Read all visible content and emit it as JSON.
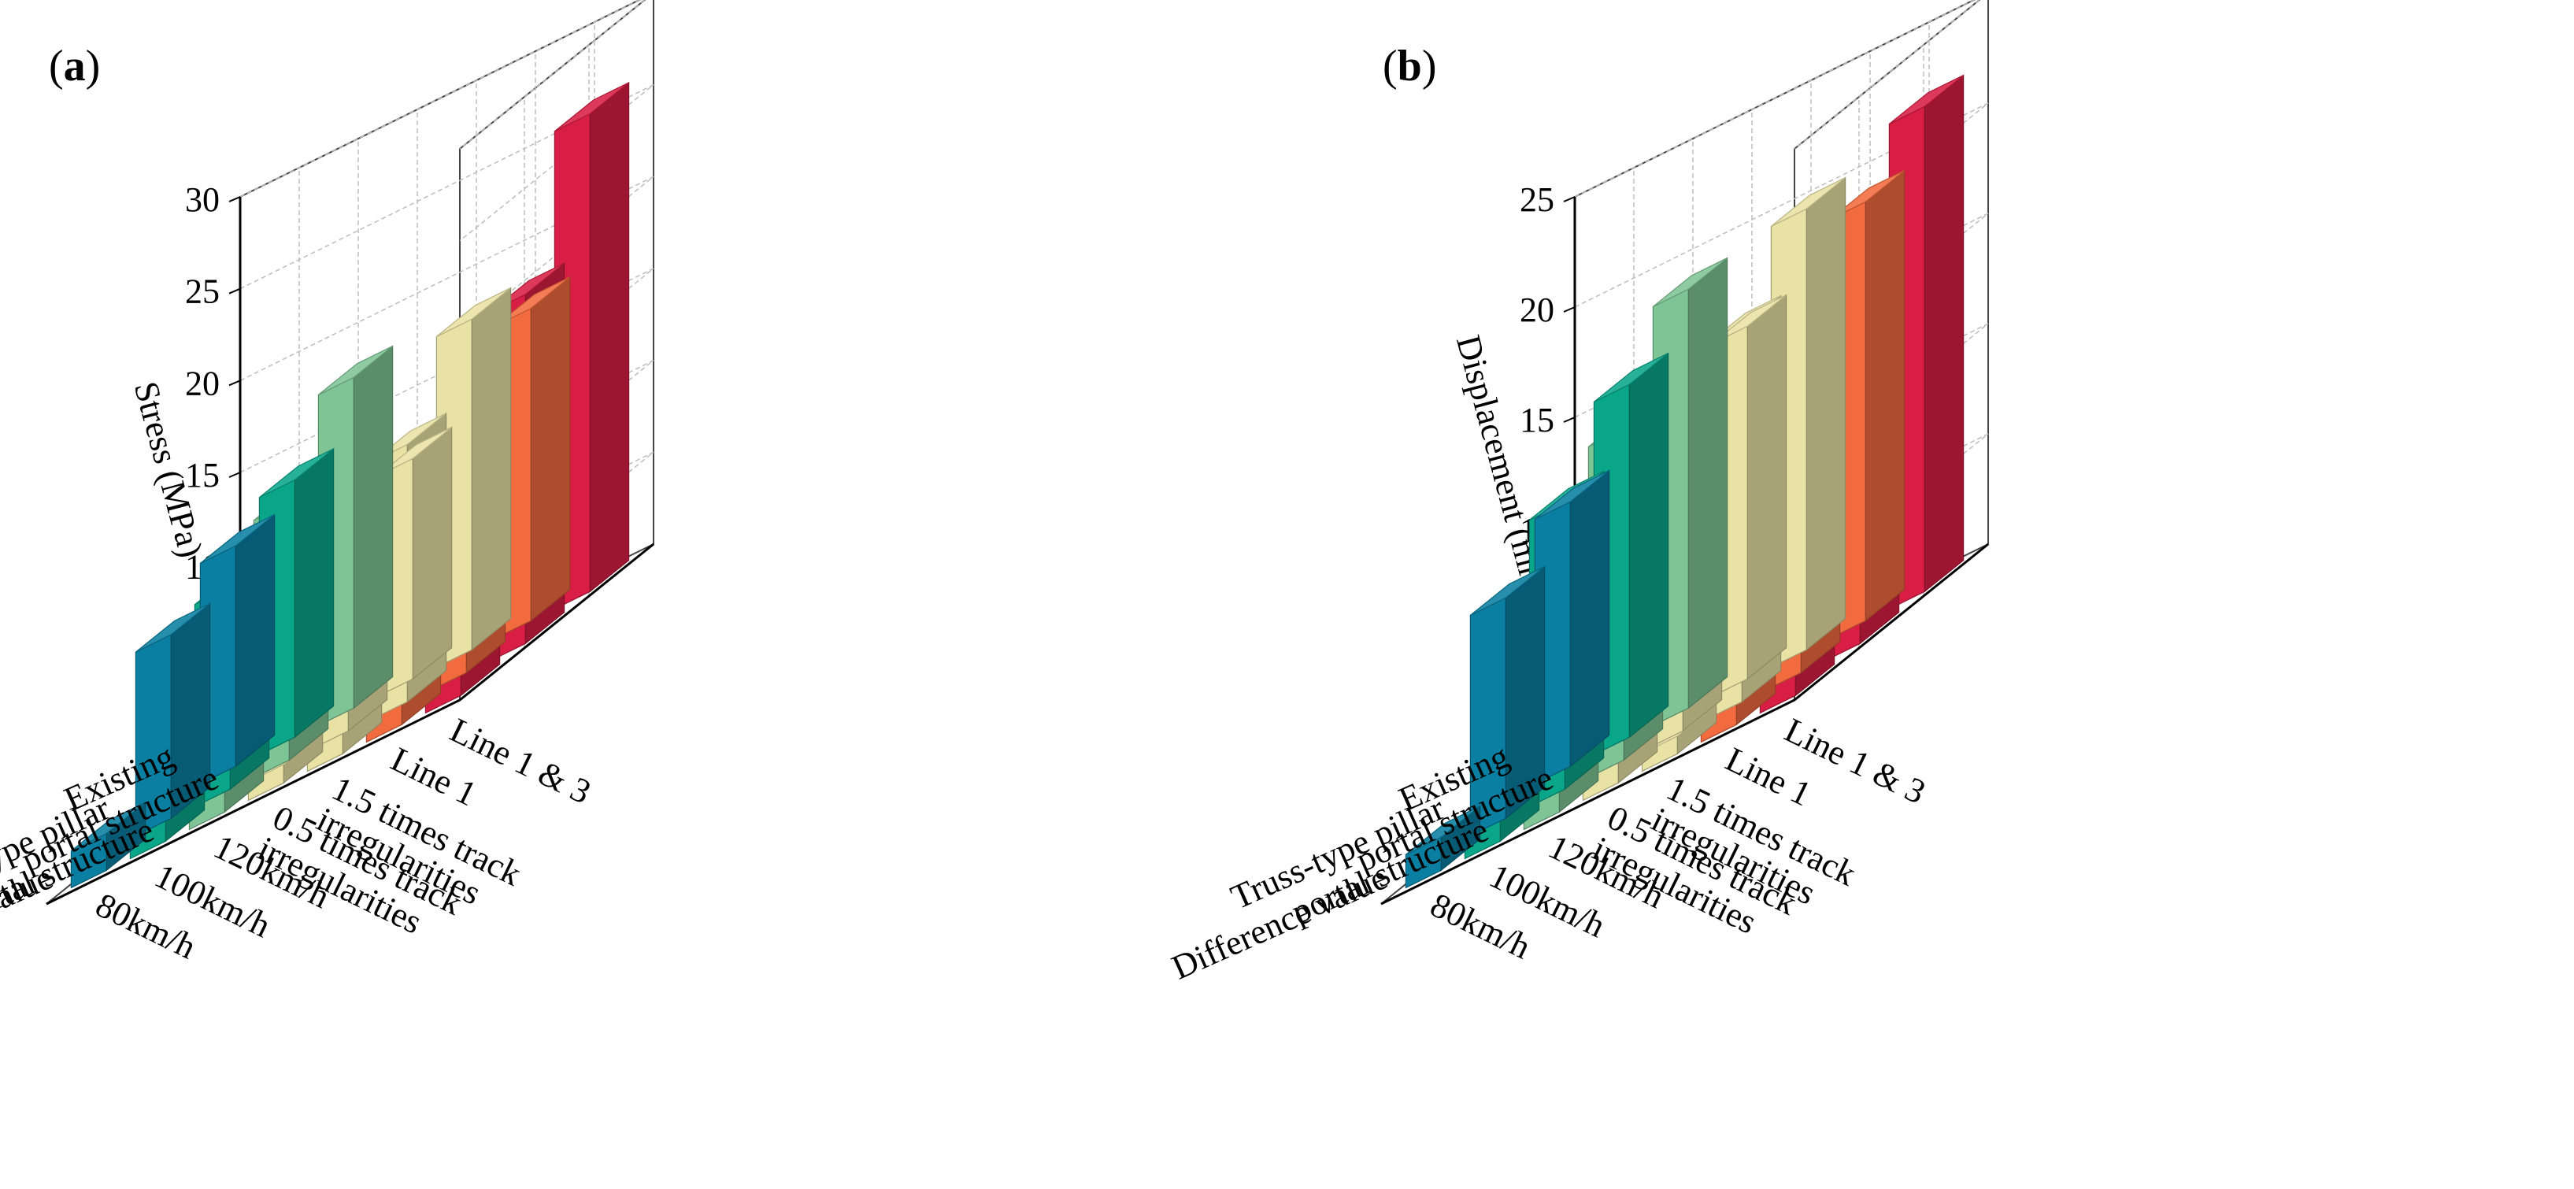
{
  "palette": [
    "#0a7fa1",
    "#0aa68a",
    "#7fc495",
    "#e9e2a5",
    "#f26b3f",
    "#d81e44"
  ],
  "chart_data": [
    {
      "type": "bar3d",
      "panel": "a",
      "ylabel": "Stress (MPa)",
      "ylim": [
        0,
        30
      ],
      "yticks": [
        "0",
        "5",
        "10",
        "15",
        "20",
        "25",
        "30"
      ],
      "rows": [
        "Existing portal structure",
        "Truss-type pillar portal structure",
        "Difference value"
      ],
      "row_labels": [
        [
          "Existing",
          "portal structure"
        ],
        [
          "Truss-type pillar",
          "portal structure"
        ],
        [
          "Difference value"
        ]
      ],
      "columns": [
        "80km/h",
        "100km/h",
        "120km/h",
        "0.5 times track irregularities",
        "1.5 times track irregularities",
        "Line 1",
        "Line 1 & 3"
      ],
      "column_labels": [
        [
          "80km/h"
        ],
        [
          "100km/h"
        ],
        [
          "120km/h"
        ],
        [
          "0.5 times track",
          "irregularities"
        ],
        [
          "1.5 times track",
          "irregularities"
        ],
        [
          "Line 1"
        ],
        [
          "Line 1 & 3"
        ]
      ],
      "series": [
        {
          "name": "Existing portal structure",
          "values": [
            12.0,
            14.0,
            18.0,
            12.0,
            18.0,
            17.0,
            26.0
          ]
        },
        {
          "name": "Truss-type pillar portal structure",
          "values": [
            10.0,
            11.0,
            14.0,
            10.0,
            14.0,
            12.0,
            19.0
          ]
        },
        {
          "name": "Difference value",
          "values": [
            2.0,
            1.5,
            1.5,
            1.0,
            1.8,
            3.0,
            4.0
          ]
        }
      ],
      "colors_by_column": [
        0,
        1,
        2,
        3,
        3,
        4,
        5
      ]
    },
    {
      "type": "bar3d",
      "panel": "b",
      "ylabel": "Displacement (mm)",
      "ylim": [
        0,
        25
      ],
      "yticks": [
        "0",
        "5",
        "10",
        "15",
        "20",
        "25"
      ],
      "rows": [
        "Existing portal structure",
        "Truss-type pillar portal structure",
        "Difference value"
      ],
      "row_labels": [
        [
          "Existing",
          "portal structure"
        ],
        [
          "Truss-type pillar",
          "portal structure"
        ],
        [
          "Difference value"
        ]
      ],
      "columns": [
        "80km/h",
        "100km/h",
        "120km/h",
        "0.5 times track irregularities",
        "1.5 times track irregularities",
        "Line 1",
        "Line 1 & 3"
      ],
      "column_labels": [
        [
          "80km/h"
        ],
        [
          "100km/h"
        ],
        [
          "120km/h"
        ],
        [
          "0.5 times track",
          "irregularities"
        ],
        [
          "1.5 times track",
          "irregularities"
        ],
        [
          "Line 1"
        ],
        [
          "Line 1 & 3"
        ]
      ],
      "series": [
        {
          "name": "Existing portal structure",
          "values": [
            12.0,
            16.0,
            19.0,
            16.0,
            20.0,
            19.0,
            22.0
          ]
        },
        {
          "name": "Truss-type pillar portal structure",
          "values": [
            10.0,
            13.0,
            15.0,
            13.0,
            17.0,
            15.0,
            18.0
          ]
        },
        {
          "name": "Difference value",
          "values": [
            1.5,
            2.0,
            2.5,
            2.5,
            0.8,
            2.6,
            1.0
          ]
        }
      ],
      "colors_by_column": [
        0,
        1,
        2,
        3,
        3,
        4,
        5
      ]
    }
  ]
}
